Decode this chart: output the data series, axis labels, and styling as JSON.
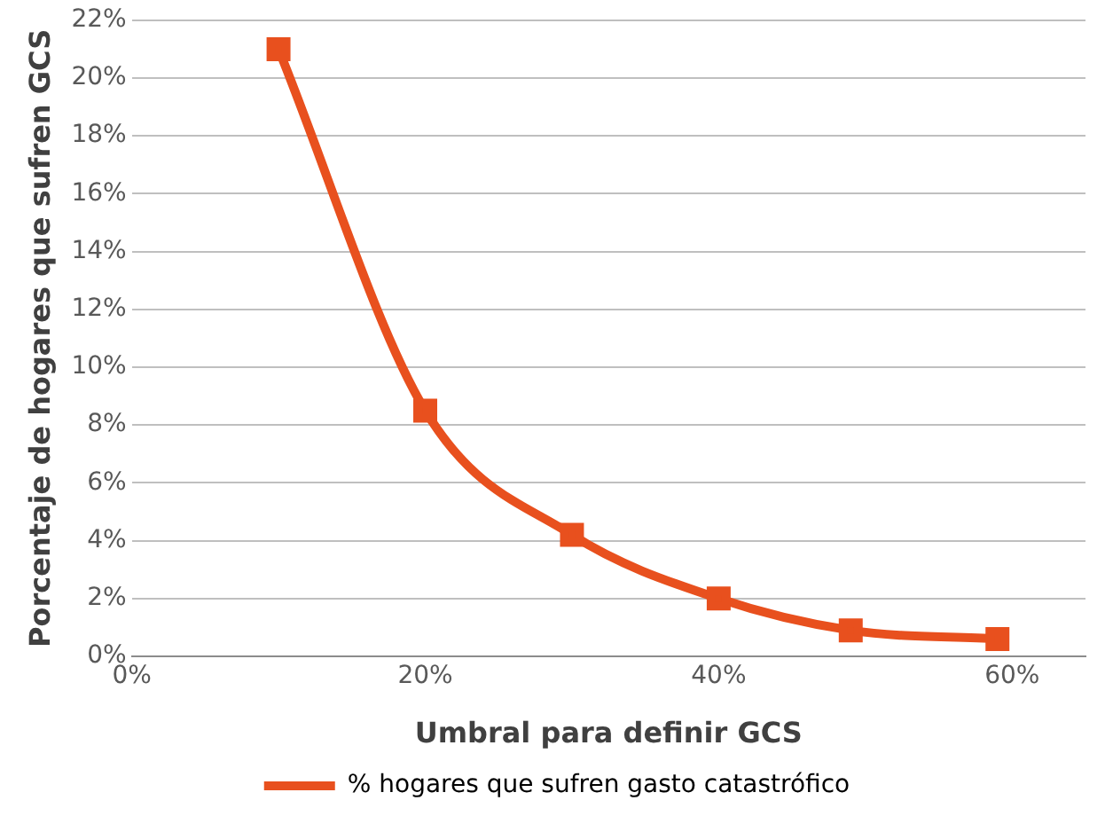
{
  "chart_data": {
    "type": "line",
    "xlabel": "Umbral para definir GCS",
    "ylabel": "Porcentaje de hogares que sufren GCS",
    "x": [
      10,
      20,
      30,
      40,
      49,
      59
    ],
    "series": [
      {
        "name": "% hogares que sufren gasto catastrófico",
        "color": "#e8501e",
        "values": [
          21,
          8.5,
          4.2,
          2.0,
          0.9,
          0.6
        ]
      }
    ],
    "xlim": [
      0,
      65
    ],
    "xticks": [
      {
        "value": 0,
        "label": "0%"
      },
      {
        "value": 20,
        "label": "20%"
      },
      {
        "value": 40,
        "label": "40%"
      },
      {
        "value": 60,
        "label": "60%"
      }
    ],
    "ylim": [
      0,
      22
    ],
    "yticks": [
      {
        "value": 0,
        "label": "0%"
      },
      {
        "value": 2,
        "label": "2%"
      },
      {
        "value": 4,
        "label": "4%"
      },
      {
        "value": 6,
        "label": "6%"
      },
      {
        "value": 8,
        "label": "8%"
      },
      {
        "value": 10,
        "label": "10%"
      },
      {
        "value": 12,
        "label": "12%"
      },
      {
        "value": 14,
        "label": "14%"
      },
      {
        "value": 16,
        "label": "16%"
      },
      {
        "value": 18,
        "label": "18%"
      },
      {
        "value": 20,
        "label": "20%"
      },
      {
        "value": 22,
        "label": "22%"
      }
    ],
    "grid": "y",
    "legend": "bottom",
    "marker": "square",
    "line_style": "solid"
  }
}
